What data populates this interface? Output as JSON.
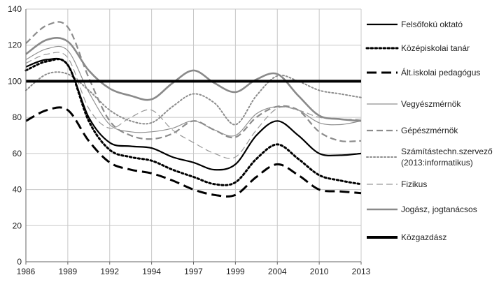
{
  "chart_data": {
    "type": "line",
    "title": "",
    "xlabel": "",
    "ylabel": "",
    "ylim": [
      0,
      140
    ],
    "ytick_step": 20,
    "grid": "vertical and horizontal",
    "legend_position": "right",
    "categories": [
      "1986",
      "1989",
      "1992",
      "1994",
      "1997",
      "1999",
      "2004",
      "2010",
      "2013"
    ],
    "series": [
      {
        "name": "Felsőfokú oktató",
        "name_lines": [
          "Felsőfokú oktató"
        ],
        "color": "#000000",
        "style": "solid",
        "width": 2.2,
        "points": [
          [
            0,
            108
          ],
          [
            0.5,
            112
          ],
          [
            1,
            109
          ],
          [
            1.5,
            80
          ],
          [
            2,
            66
          ],
          [
            2.5,
            64
          ],
          [
            3,
            63
          ],
          [
            3.5,
            58
          ],
          [
            4,
            55
          ],
          [
            4.5,
            51
          ],
          [
            5,
            54
          ],
          [
            5.5,
            70
          ],
          [
            6,
            78
          ],
          [
            6.5,
            70
          ],
          [
            7,
            60
          ],
          [
            7.5,
            59
          ],
          [
            8,
            60
          ]
        ]
      },
      {
        "name": "Középiskolai tanár",
        "name_lines": [
          "Középiskolai tanár"
        ],
        "color": "#000000",
        "style": "dotted",
        "width": 3,
        "points": [
          [
            0,
            106
          ],
          [
            0.5,
            111
          ],
          [
            1,
            109
          ],
          [
            1.5,
            78
          ],
          [
            2,
            62
          ],
          [
            2.5,
            58
          ],
          [
            3,
            56
          ],
          [
            3.5,
            51
          ],
          [
            4,
            47
          ],
          [
            4.5,
            43
          ],
          [
            5,
            44
          ],
          [
            5.5,
            57
          ],
          [
            6,
            65
          ],
          [
            6.5,
            57
          ],
          [
            7,
            48
          ],
          [
            7.5,
            45
          ],
          [
            8,
            43
          ]
        ]
      },
      {
        "name": "Ált.iskolai pedagógus",
        "name_lines": [
          "Ált.iskolai pedagógus"
        ],
        "color": "#000000",
        "style": "dashed",
        "width": 3,
        "points": [
          [
            0,
            78
          ],
          [
            0.5,
            84
          ],
          [
            1,
            84
          ],
          [
            1.5,
            67
          ],
          [
            2,
            55
          ],
          [
            2.5,
            51
          ],
          [
            3,
            49
          ],
          [
            3.5,
            45
          ],
          [
            4,
            40
          ],
          [
            4.5,
            37
          ],
          [
            5,
            37
          ],
          [
            5.5,
            47
          ],
          [
            6,
            54
          ],
          [
            6.5,
            48
          ],
          [
            7,
            40
          ],
          [
            7.5,
            39
          ],
          [
            8,
            38
          ]
        ]
      },
      {
        "name": "Vegyészmérnök",
        "name_lines": [
          "Vegyészmérnök"
        ],
        "color": "#909090",
        "style": "solid",
        "width": 1.2,
        "points": [
          [
            0,
            112
          ],
          [
            0.5,
            118
          ],
          [
            1,
            117
          ],
          [
            1.5,
            94
          ],
          [
            2,
            76
          ],
          [
            2.5,
            72
          ],
          [
            3,
            72
          ],
          [
            3.5,
            74
          ],
          [
            4,
            78
          ],
          [
            4.5,
            73
          ],
          [
            5,
            70
          ],
          [
            5.5,
            82
          ],
          [
            6,
            86
          ],
          [
            6.5,
            84
          ],
          [
            7,
            77
          ],
          [
            7.5,
            76
          ],
          [
            8,
            78
          ]
        ]
      },
      {
        "name": "Gépészmérnök",
        "name_lines": [
          "Gépészmérnök"
        ],
        "color": "#8c8c8c",
        "style": "dashed",
        "width": 2.2,
        "points": [
          [
            0,
            121
          ],
          [
            0.5,
            131
          ],
          [
            1,
            130
          ],
          [
            1.5,
            102
          ],
          [
            2,
            78
          ],
          [
            2.5,
            70
          ],
          [
            3,
            68
          ],
          [
            3.5,
            71
          ],
          [
            4,
            78
          ],
          [
            4.5,
            73
          ],
          [
            5,
            69
          ],
          [
            5.5,
            80
          ],
          [
            6,
            86
          ],
          [
            6.5,
            84
          ],
          [
            7,
            72
          ],
          [
            7.5,
            67
          ],
          [
            8,
            67
          ]
        ]
      },
      {
        "name": "Számítástechn.szervező (2013:informatikus)",
        "name_lines": [
          "Számítástechn.szervező",
          "(2013:informatikus)"
        ],
        "color": "#8c8c8c",
        "style": "dotted",
        "width": 2,
        "points": [
          [
            0,
            95
          ],
          [
            0.5,
            104
          ],
          [
            1,
            104
          ],
          [
            1.5,
            95
          ],
          [
            2,
            84
          ],
          [
            2.5,
            78
          ],
          [
            3,
            77
          ],
          [
            3.5,
            86
          ],
          [
            4,
            93
          ],
          [
            4.5,
            88
          ],
          [
            5,
            76
          ],
          [
            5.5,
            92
          ],
          [
            6,
            103
          ],
          [
            6.5,
            100
          ],
          [
            7,
            95
          ],
          [
            7.5,
            93
          ],
          [
            8,
            91
          ]
        ]
      },
      {
        "name": "Fizikus",
        "name_lines": [
          "Fizikus"
        ],
        "color": "#999999",
        "style": "dashed",
        "width": 1.2,
        "points": [
          [
            0,
            110
          ],
          [
            0.5,
            115
          ],
          [
            1,
            113
          ],
          [
            1.5,
            85
          ],
          [
            2,
            74
          ],
          [
            2.5,
            80
          ],
          [
            3,
            84
          ],
          [
            3.5,
            73
          ],
          [
            4,
            66
          ],
          [
            4.5,
            60
          ],
          [
            5,
            58
          ],
          [
            5.5,
            73
          ],
          [
            6,
            85
          ],
          [
            6.5,
            84
          ],
          [
            7,
            80
          ],
          [
            7.5,
            79
          ],
          [
            8,
            79
          ]
        ]
      },
      {
        "name": "Jogász, jogtanácsos",
        "name_lines": [
          "Jogász, jogtanácsos"
        ],
        "color": "#8a8a8a",
        "style": "solid",
        "width": 2.6,
        "points": [
          [
            0,
            115
          ],
          [
            0.5,
            123
          ],
          [
            1,
            122
          ],
          [
            1.5,
            106
          ],
          [
            2,
            96
          ],
          [
            2.5,
            92
          ],
          [
            3,
            90
          ],
          [
            3.5,
            99
          ],
          [
            4,
            106
          ],
          [
            4.5,
            99
          ],
          [
            5,
            94
          ],
          [
            5.5,
            101
          ],
          [
            6,
            104
          ],
          [
            6.5,
            92
          ],
          [
            7,
            81
          ],
          [
            7.5,
            79
          ],
          [
            8,
            78
          ]
        ]
      },
      {
        "name": "Közgazdász",
        "name_lines": [
          "Közgazdász"
        ],
        "color": "#000000",
        "style": "solid",
        "width": 4,
        "points": [
          [
            0,
            100
          ],
          [
            1,
            100
          ],
          [
            2,
            100
          ],
          [
            3,
            100
          ],
          [
            4,
            100
          ],
          [
            5,
            100
          ],
          [
            6,
            100
          ],
          [
            7,
            100
          ],
          [
            8,
            100
          ]
        ]
      }
    ]
  }
}
